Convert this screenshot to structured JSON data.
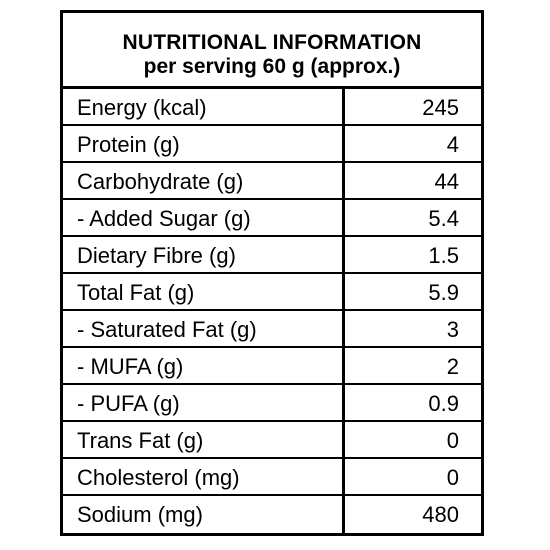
{
  "header": {
    "title": "NUTRITIONAL INFORMATION",
    "subtitle": "per serving 60 g (approx.)"
  },
  "rows": [
    {
      "label": "Energy (kcal)",
      "value": "245"
    },
    {
      "label": "Protein (g)",
      "value": "4"
    },
    {
      "label": "Carbohydrate (g)",
      "value": "44"
    },
    {
      "label": "- Added Sugar (g)",
      "value": "5.4"
    },
    {
      "label": "Dietary Fibre (g)",
      "value": "1.5"
    },
    {
      "label": "Total Fat (g)",
      "value": "5.9"
    },
    {
      "label": "- Saturated Fat (g)",
      "value": "3"
    },
    {
      "label": "- MUFA (g)",
      "value": "2"
    },
    {
      "label": "- PUFA (g)",
      "value": "0.9"
    },
    {
      "label": "Trans Fat (g)",
      "value": "0"
    },
    {
      "label": "Cholesterol (mg)",
      "value": "0"
    },
    {
      "label": "Sodium (mg)",
      "value": "480"
    }
  ]
}
